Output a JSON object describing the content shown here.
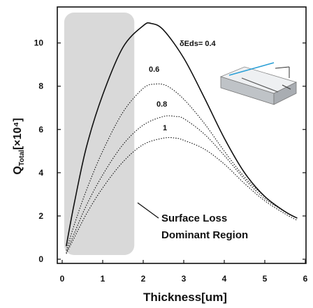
{
  "chart_data": {
    "type": "line",
    "xlabel": "Thickness[um]",
    "ylabel_main": "Q",
    "ylabel_sub": "Total",
    "ylabel_unit": "[×10⁴]",
    "xlim": [
      0,
      6
    ],
    "ylim": [
      0,
      11.6
    ],
    "xticks": [
      "0",
      "1",
      "2",
      "3",
      "4",
      "5",
      "6"
    ],
    "yticks": [
      "0",
      "2",
      "4",
      "6",
      "8",
      "10"
    ],
    "grid": false,
    "shaded_region": {
      "x_from": 0.05,
      "x_to": 1.78
    },
    "annotation_lines": [
      "Surface Loss",
      "Dominant Region"
    ],
    "series": [
      {
        "name": "δEds= 0.4",
        "style": "solid",
        "x": [
          0.1,
          0.3,
          0.6,
          1.0,
          1.5,
          2.0,
          2.2,
          2.5,
          3.0,
          3.5,
          4.0,
          4.5,
          5.0,
          5.5,
          5.8
        ],
        "y": [
          0.6,
          2.6,
          5.2,
          7.6,
          9.8,
          10.8,
          10.9,
          10.6,
          9.3,
          7.5,
          5.6,
          4.0,
          2.9,
          2.2,
          1.9
        ]
      },
      {
        "name": "0.6",
        "style": "dotted",
        "x": [
          0.1,
          0.3,
          0.6,
          1.0,
          1.5,
          2.0,
          2.3,
          2.6,
          3.0,
          3.5,
          4.0,
          4.5,
          5.0,
          5.5,
          5.8
        ],
        "y": [
          0.4,
          1.6,
          3.2,
          5.0,
          6.8,
          7.9,
          8.1,
          8.0,
          7.4,
          6.3,
          5.0,
          3.8,
          2.9,
          2.2,
          1.9
        ]
      },
      {
        "name": "0.8",
        "style": "dotted",
        "x": [
          0.1,
          0.3,
          0.6,
          1.0,
          1.5,
          2.0,
          2.5,
          2.8,
          3.0,
          3.5,
          4.0,
          4.5,
          5.0,
          5.5,
          5.8
        ],
        "y": [
          0.3,
          1.2,
          2.5,
          3.9,
          5.3,
          6.2,
          6.6,
          6.6,
          6.5,
          5.8,
          4.8,
          3.7,
          2.8,
          2.2,
          1.9
        ]
      },
      {
        "name": "1",
        "style": "dotted",
        "x": [
          0.1,
          0.3,
          0.6,
          1.0,
          1.5,
          2.0,
          2.5,
          2.8,
          3.0,
          3.5,
          4.0,
          4.5,
          5.0,
          5.5,
          5.8
        ],
        "y": [
          0.25,
          1.0,
          2.1,
          3.3,
          4.5,
          5.3,
          5.6,
          5.6,
          5.5,
          5.1,
          4.4,
          3.5,
          2.7,
          2.1,
          1.8
        ]
      }
    ]
  }
}
